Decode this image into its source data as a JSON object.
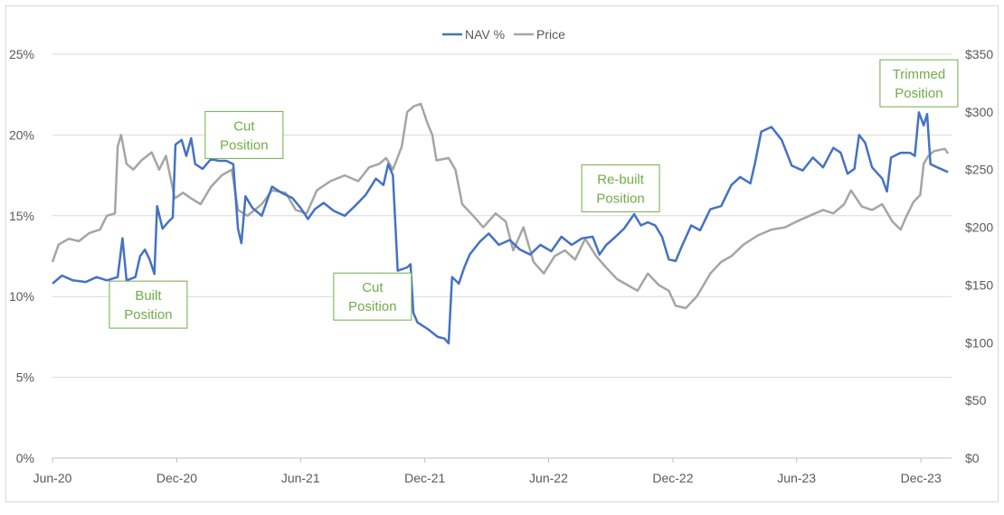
{
  "chart_data": {
    "type": "line",
    "title": "",
    "xlabel": "",
    "ylabel": "",
    "x_start": "2020-06-01",
    "x_end": "2024-01-15",
    "x_tick_labels": [
      {
        "date": "2020-06-01",
        "label": "Jun-20"
      },
      {
        "date": "2020-12-01",
        "label": "Dec-20"
      },
      {
        "date": "2021-06-01",
        "label": "Jun-21"
      },
      {
        "date": "2021-12-01",
        "label": "Dec-21"
      },
      {
        "date": "2022-06-01",
        "label": "Jun-22"
      },
      {
        "date": "2022-12-01",
        "label": "Dec-22"
      },
      {
        "date": "2023-06-01",
        "label": "Jun-23"
      },
      {
        "date": "2023-12-01",
        "label": "Dec-23"
      }
    ],
    "y_left": {
      "min": 0,
      "max": 25,
      "ticks": [
        "0%",
        "5%",
        "10%",
        "15%",
        "20%",
        "25%"
      ]
    },
    "y_right": {
      "min": 0,
      "max": 350,
      "ticks": [
        "$0",
        "$50",
        "$100",
        "$150",
        "$200",
        "$250",
        "$300",
        "$350"
      ]
    },
    "grid": true,
    "legend_position": "top-center",
    "series": [
      {
        "name": "NAV %",
        "axis": "left",
        "color": "#4472c4",
        "points": [
          [
            "2020-06-01",
            10.8
          ],
          [
            "2020-06-15",
            11.3
          ],
          [
            "2020-07-01",
            11.0
          ],
          [
            "2020-07-20",
            10.9
          ],
          [
            "2020-08-05",
            11.2
          ],
          [
            "2020-08-20",
            11.0
          ],
          [
            "2020-09-05",
            11.2
          ],
          [
            "2020-09-12",
            13.6
          ],
          [
            "2020-09-18",
            11.0
          ],
          [
            "2020-10-01",
            11.2
          ],
          [
            "2020-10-08",
            12.5
          ],
          [
            "2020-10-15",
            12.9
          ],
          [
            "2020-10-22",
            12.3
          ],
          [
            "2020-10-29",
            11.4
          ],
          [
            "2020-11-02",
            15.6
          ],
          [
            "2020-11-10",
            14.2
          ],
          [
            "2020-11-18",
            14.6
          ],
          [
            "2020-11-25",
            14.9
          ],
          [
            "2020-11-29",
            19.4
          ],
          [
            "2020-12-08",
            19.7
          ],
          [
            "2020-12-15",
            18.7
          ],
          [
            "2020-12-22",
            19.8
          ],
          [
            "2020-12-28",
            18.2
          ],
          [
            "2021-01-08",
            17.9
          ],
          [
            "2021-01-20",
            18.5
          ],
          [
            "2021-02-01",
            18.4
          ],
          [
            "2021-02-12",
            18.4
          ],
          [
            "2021-02-22",
            18.2
          ],
          [
            "2021-03-01",
            14.2
          ],
          [
            "2021-03-06",
            13.3
          ],
          [
            "2021-03-12",
            16.2
          ],
          [
            "2021-03-22",
            15.5
          ],
          [
            "2021-04-05",
            15.0
          ],
          [
            "2021-04-20",
            16.8
          ],
          [
            "2021-05-05",
            16.4
          ],
          [
            "2021-05-20",
            16.1
          ],
          [
            "2021-06-01",
            15.5
          ],
          [
            "2021-06-12",
            14.8
          ],
          [
            "2021-06-22",
            15.4
          ],
          [
            "2021-07-05",
            15.8
          ],
          [
            "2021-07-20",
            15.3
          ],
          [
            "2021-08-05",
            15.0
          ],
          [
            "2021-08-20",
            15.6
          ],
          [
            "2021-09-05",
            16.3
          ],
          [
            "2021-09-20",
            17.3
          ],
          [
            "2021-10-01",
            16.9
          ],
          [
            "2021-10-08",
            18.2
          ],
          [
            "2021-10-15",
            17.5
          ],
          [
            "2021-10-22",
            11.6
          ],
          [
            "2021-11-05",
            11.8
          ],
          [
            "2021-11-10",
            12.0
          ],
          [
            "2021-11-14",
            9.0
          ],
          [
            "2021-11-20",
            8.4
          ],
          [
            "2021-12-05",
            8.0
          ],
          [
            "2021-12-20",
            7.5
          ],
          [
            "2021-12-30",
            7.4
          ],
          [
            "2022-01-05",
            7.1
          ],
          [
            "2022-01-10",
            11.2
          ],
          [
            "2022-01-20",
            10.8
          ],
          [
            "2022-01-28",
            11.8
          ],
          [
            "2022-02-05",
            12.6
          ],
          [
            "2022-02-20",
            13.4
          ],
          [
            "2022-03-05",
            13.9
          ],
          [
            "2022-03-20",
            13.2
          ],
          [
            "2022-04-05",
            13.5
          ],
          [
            "2022-04-20",
            12.9
          ],
          [
            "2022-05-05",
            12.6
          ],
          [
            "2022-05-20",
            13.2
          ],
          [
            "2022-06-05",
            12.8
          ],
          [
            "2022-06-20",
            13.7
          ],
          [
            "2022-07-05",
            13.2
          ],
          [
            "2022-07-20",
            13.6
          ],
          [
            "2022-08-05",
            13.7
          ],
          [
            "2022-08-15",
            12.6
          ],
          [
            "2022-08-25",
            13.2
          ],
          [
            "2022-09-05",
            13.6
          ],
          [
            "2022-09-20",
            14.2
          ],
          [
            "2022-10-05",
            15.1
          ],
          [
            "2022-10-15",
            14.4
          ],
          [
            "2022-10-25",
            14.6
          ],
          [
            "2022-11-05",
            14.4
          ],
          [
            "2022-11-15",
            13.7
          ],
          [
            "2022-11-25",
            12.3
          ],
          [
            "2022-12-05",
            12.2
          ],
          [
            "2022-12-15",
            13.2
          ],
          [
            "2022-12-28",
            14.4
          ],
          [
            "2023-01-10",
            14.1
          ],
          [
            "2023-01-25",
            15.4
          ],
          [
            "2023-02-10",
            15.6
          ],
          [
            "2023-02-25",
            16.9
          ],
          [
            "2023-03-10",
            17.4
          ],
          [
            "2023-03-25",
            17.0
          ],
          [
            "2023-04-01",
            18.3
          ],
          [
            "2023-04-10",
            20.2
          ],
          [
            "2023-04-25",
            20.5
          ],
          [
            "2023-05-10",
            19.7
          ],
          [
            "2023-05-25",
            18.1
          ],
          [
            "2023-06-10",
            17.8
          ],
          [
            "2023-06-25",
            18.6
          ],
          [
            "2023-07-10",
            18.0
          ],
          [
            "2023-07-25",
            19.2
          ],
          [
            "2023-08-05",
            18.9
          ],
          [
            "2023-08-15",
            17.6
          ],
          [
            "2023-08-25",
            17.9
          ],
          [
            "2023-09-01",
            20.0
          ],
          [
            "2023-09-10",
            19.5
          ],
          [
            "2023-09-20",
            18.0
          ],
          [
            "2023-10-05",
            17.3
          ],
          [
            "2023-10-12",
            16.5
          ],
          [
            "2023-10-18",
            18.6
          ],
          [
            "2023-11-01",
            18.9
          ],
          [
            "2023-11-15",
            18.9
          ],
          [
            "2023-11-22",
            18.7
          ],
          [
            "2023-11-28",
            21.4
          ],
          [
            "2023-12-05",
            20.6
          ],
          [
            "2023-12-10",
            21.3
          ],
          [
            "2023-12-15",
            18.2
          ],
          [
            "2023-12-25",
            18.0
          ],
          [
            "2024-01-10",
            17.7
          ]
        ]
      },
      {
        "name": "Price",
        "axis": "right",
        "color": "#a5a5a5",
        "points": [
          [
            "2020-06-01",
            170
          ],
          [
            "2020-06-10",
            185
          ],
          [
            "2020-06-25",
            190
          ],
          [
            "2020-07-10",
            188
          ],
          [
            "2020-07-25",
            195
          ],
          [
            "2020-08-10",
            198
          ],
          [
            "2020-08-20",
            210
          ],
          [
            "2020-09-01",
            212
          ],
          [
            "2020-09-05",
            270
          ],
          [
            "2020-09-10",
            280
          ],
          [
            "2020-09-18",
            255
          ],
          [
            "2020-09-28",
            250
          ],
          [
            "2020-10-10",
            258
          ],
          [
            "2020-10-25",
            265
          ],
          [
            "2020-11-05",
            250
          ],
          [
            "2020-11-15",
            262
          ],
          [
            "2020-11-28",
            225
          ],
          [
            "2020-12-10",
            230
          ],
          [
            "2020-12-22",
            225
          ],
          [
            "2021-01-05",
            220
          ],
          [
            "2021-01-20",
            235
          ],
          [
            "2021-02-05",
            245
          ],
          [
            "2021-02-20",
            250
          ],
          [
            "2021-03-01",
            215
          ],
          [
            "2021-03-15",
            210
          ],
          [
            "2021-04-05",
            220
          ],
          [
            "2021-04-20",
            232
          ],
          [
            "2021-05-10",
            230
          ],
          [
            "2021-05-25",
            215
          ],
          [
            "2021-06-10",
            212
          ],
          [
            "2021-06-25",
            232
          ],
          [
            "2021-07-15",
            240
          ],
          [
            "2021-08-05",
            245
          ],
          [
            "2021-08-25",
            240
          ],
          [
            "2021-09-10",
            252
          ],
          [
            "2021-09-25",
            255
          ],
          [
            "2021-10-05",
            260
          ],
          [
            "2021-10-15",
            250
          ],
          [
            "2021-10-28",
            270
          ],
          [
            "2021-11-05",
            300
          ],
          [
            "2021-11-15",
            305
          ],
          [
            "2021-11-25",
            307
          ],
          [
            "2021-12-05",
            290
          ],
          [
            "2021-12-12",
            280
          ],
          [
            "2021-12-18",
            258
          ],
          [
            "2022-01-05",
            260
          ],
          [
            "2022-01-15",
            250
          ],
          [
            "2022-01-25",
            220
          ],
          [
            "2022-02-10",
            210
          ],
          [
            "2022-02-25",
            200
          ],
          [
            "2022-03-15",
            212
          ],
          [
            "2022-03-30",
            205
          ],
          [
            "2022-04-10",
            180
          ],
          [
            "2022-04-25",
            200
          ],
          [
            "2022-05-10",
            170
          ],
          [
            "2022-05-25",
            160
          ],
          [
            "2022-06-10",
            175
          ],
          [
            "2022-06-25",
            180
          ],
          [
            "2022-07-10",
            172
          ],
          [
            "2022-07-25",
            190
          ],
          [
            "2022-08-10",
            175
          ],
          [
            "2022-08-25",
            165
          ],
          [
            "2022-09-10",
            155
          ],
          [
            "2022-09-25",
            150
          ],
          [
            "2022-10-10",
            145
          ],
          [
            "2022-10-25",
            160
          ],
          [
            "2022-11-10",
            150
          ],
          [
            "2022-11-25",
            145
          ],
          [
            "2022-12-05",
            132
          ],
          [
            "2022-12-20",
            130
          ],
          [
            "2023-01-05",
            140
          ],
          [
            "2023-01-25",
            160
          ],
          [
            "2023-02-10",
            170
          ],
          [
            "2023-02-25",
            175
          ],
          [
            "2023-03-15",
            185
          ],
          [
            "2023-04-05",
            193
          ],
          [
            "2023-04-25",
            198
          ],
          [
            "2023-05-15",
            200
          ],
          [
            "2023-06-01",
            205
          ],
          [
            "2023-06-20",
            210
          ],
          [
            "2023-07-10",
            215
          ],
          [
            "2023-07-25",
            212
          ],
          [
            "2023-08-10",
            220
          ],
          [
            "2023-08-20",
            232
          ],
          [
            "2023-09-05",
            218
          ],
          [
            "2023-09-20",
            215
          ],
          [
            "2023-10-05",
            220
          ],
          [
            "2023-10-20",
            205
          ],
          [
            "2023-11-01",
            198
          ],
          [
            "2023-11-10",
            210
          ],
          [
            "2023-11-20",
            222
          ],
          [
            "2023-11-30",
            228
          ],
          [
            "2023-12-05",
            255
          ],
          [
            "2023-12-12",
            262
          ],
          [
            "2023-12-20",
            266
          ],
          [
            "2024-01-05",
            268
          ],
          [
            "2024-01-10",
            264
          ]
        ]
      }
    ],
    "annotations": [
      {
        "lines": [
          "Built",
          "Position"
        ],
        "date": "2020-10-20",
        "value_pct": 9.5
      },
      {
        "lines": [
          "Cut",
          "Position"
        ],
        "date": "2021-03-10",
        "value_pct": 20.0
      },
      {
        "lines": [
          "Cut",
          "Position"
        ],
        "date": "2021-09-15",
        "value_pct": 10.0
      },
      {
        "lines": [
          "Re-built",
          "Position"
        ],
        "date": "2022-09-15",
        "value_pct": 16.7
      },
      {
        "lines": [
          "Trimmed",
          "Position"
        ],
        "date": "2023-11-28",
        "value_pct": 23.2
      }
    ]
  }
}
